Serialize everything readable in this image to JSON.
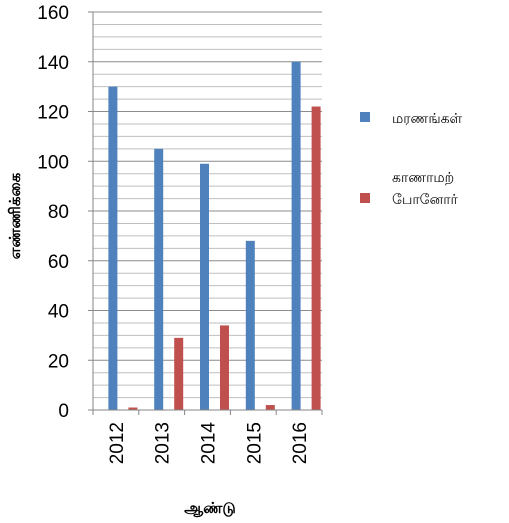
{
  "chart_data": {
    "type": "bar",
    "categories": [
      "2012",
      "2013",
      "2014",
      "2015",
      "2016"
    ],
    "series": [
      {
        "name": "மரணங்கள்",
        "color": "#4F81BD",
        "values": [
          130,
          105,
          99,
          68,
          140
        ]
      },
      {
        "name": "காணாமற் போனோர்",
        "name_lines": [
          "காணாமற்",
          "போனோர்"
        ],
        "color": "#C0504D",
        "values": [
          1,
          29,
          34,
          2,
          122
        ]
      }
    ],
    "xlabel": "ஆண்டு",
    "ylabel": "எண்ணிக்கை",
    "ylim": [
      0,
      160
    ],
    "yticks": [
      0,
      20,
      40,
      60,
      80,
      100,
      120,
      140,
      160
    ],
    "minor_grid_step": 5,
    "grid": true,
    "legend_position": "right"
  }
}
